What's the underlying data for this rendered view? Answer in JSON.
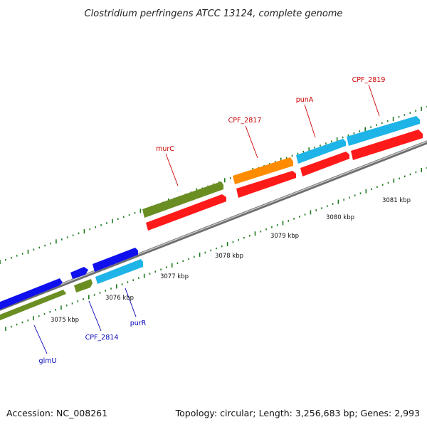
{
  "title": "Clostridium perfringens ATCC 13124, complete genome",
  "footer": {
    "accession": "Accession: NC_008261",
    "topology": "Topology: circular; Length: 3,256,683 bp; Genes: 2,993"
  },
  "colors": {
    "backbone": "#8a8a8a",
    "tick": "#1f7a1f",
    "label_red": "#cc0000",
    "label_blue": "#0000bb",
    "green": "#6b8e23",
    "red": "#ff1a1a",
    "blue": "#1010ee",
    "cyan": "#1eb4e8",
    "orange": "#ff8c00"
  },
  "kbp_labels": [
    "3075 kbp",
    "3076 kbp",
    "3077 kbp",
    "3078 kbp",
    "3079 kbp",
    "3080 kbp",
    "3081 kbp"
  ],
  "gene_labels": {
    "murC": "murC",
    "CPF_2817": "CPF_2817",
    "punA": "punA",
    "CPF_2819": "CPF_2819",
    "glmU": "glmU",
    "CPF_2814": "CPF_2814",
    "purR": "purR"
  }
}
